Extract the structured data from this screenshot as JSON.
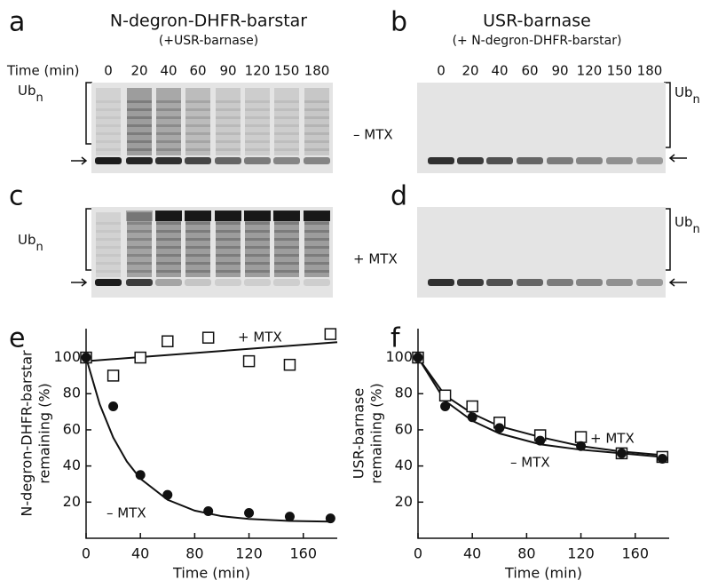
{
  "panels": {
    "labels": [
      "a",
      "b",
      "c",
      "d",
      "e",
      "f"
    ]
  },
  "gels": {
    "left_title": "N-degron-DHFR-barstar",
    "left_subtitle": "(+USR-barnase)",
    "right_title": "USR-barnase",
    "right_subtitle": "(+ N-degron-DHFR-barstar)",
    "time_label": "Time (min)",
    "times": [
      0,
      20,
      40,
      60,
      90,
      120,
      150,
      180
    ],
    "ub_main": "Ub",
    "ub_sub": "n",
    "minus_mtx": "– MTX",
    "plus_mtx": "+ MTX"
  },
  "chart_data": [
    {
      "type": "scatter",
      "ylabel": [
        "N-degron-DHFR-barstar",
        "remaining (%)"
      ],
      "xlabel": "Time (min)",
      "xlim": [
        0,
        185
      ],
      "ylim": [
        0,
        116
      ],
      "xticks": [
        0,
        40,
        80,
        120,
        160
      ],
      "yticks": [
        20,
        40,
        60,
        80,
        100
      ],
      "series": [
        {
          "name": "+ MTX",
          "color": "#111111",
          "marker": "square",
          "x": [
            0,
            20,
            40,
            60,
            90,
            120,
            150,
            180
          ],
          "values": [
            100,
            90,
            100,
            109,
            111,
            98,
            96,
            113
          ],
          "fit": {
            "x": [
              0,
              185
            ],
            "values": [
              98,
              108.5
            ]
          }
        },
        {
          "name": "– MTX",
          "color": "#111111",
          "marker": "circle",
          "x": [
            0,
            20,
            40,
            60,
            90,
            120,
            150,
            180
          ],
          "values": [
            100,
            73,
            35,
            24,
            15,
            14,
            12,
            11
          ],
          "fit": {
            "x": [
              0,
              10,
              20,
              30,
              40,
              60,
              80,
              100,
              120,
              150,
              180
            ],
            "values": [
              100,
              74.2,
              55.7,
              42.5,
              33,
              21.3,
              15.3,
              12.2,
              10.7,
              9.6,
              9.2
            ]
          }
        }
      ]
    },
    {
      "type": "scatter",
      "ylabel": [
        "USR-barnase",
        "remaining (%)"
      ],
      "xlabel": "Time (min)",
      "xlim": [
        0,
        185
      ],
      "ylim": [
        0,
        116
      ],
      "xticks": [
        0,
        40,
        80,
        120,
        160
      ],
      "yticks": [
        20,
        40,
        60,
        80,
        100
      ],
      "series": [
        {
          "name": "+ MTX",
          "color": "#111111",
          "marker": "square",
          "x": [
            0,
            20,
            40,
            60,
            90,
            120,
            150,
            180
          ],
          "values": [
            100,
            79,
            73,
            64,
            57,
            56,
            47,
            45
          ],
          "fit": {
            "x": [
              0,
              20,
              40,
              60,
              90,
              120,
              150,
              180
            ],
            "values": [
              100,
              79,
              69,
              62,
              56,
              51,
              48,
              46
            ]
          }
        },
        {
          "name": "– MTX",
          "color": "#111111",
          "marker": "circle",
          "x": [
            0,
            20,
            40,
            60,
            90,
            120,
            150,
            180
          ],
          "values": [
            100,
            73,
            67,
            61,
            54,
            51,
            47,
            44
          ],
          "fit": {
            "x": [
              0,
              20,
              40,
              60,
              90,
              120,
              150,
              180
            ],
            "values": [
              100,
              76,
              65,
              58,
              52,
              49,
              47,
              45
            ]
          }
        }
      ]
    }
  ]
}
